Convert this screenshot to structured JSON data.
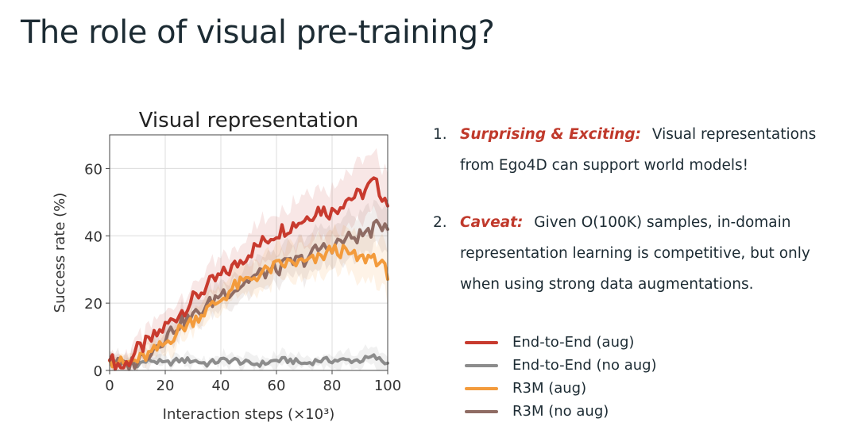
{
  "slide": {
    "title": "The role of visual pre-training?"
  },
  "points": [
    {
      "number": "1.",
      "label": "Surprising & Exciting:",
      "text": "Visual representations from Ego4D can support world models!"
    },
    {
      "number": "2.",
      "label": "Caveat:",
      "text": "Given O(100K) samples, in-domain representation learning is competitive, but only when using strong data augmentations."
    }
  ],
  "chart_data": {
    "type": "line",
    "title": "Visual representation",
    "xlabel": "Interaction steps (×10³)",
    "ylabel": "Success rate (%)",
    "xlim": [
      0,
      100
    ],
    "ylim": [
      0,
      70
    ],
    "xticks": [
      "0",
      "20",
      "40",
      "60",
      "80",
      "100"
    ],
    "yticks": [
      "0",
      "20",
      "40",
      "60"
    ],
    "grid": true,
    "legend_position": "outside-right",
    "x": [
      0,
      5,
      10,
      15,
      20,
      25,
      30,
      35,
      40,
      45,
      50,
      55,
      60,
      65,
      70,
      75,
      80,
      85,
      90,
      95,
      100
    ],
    "series": [
      {
        "name": "End-to-End (aug)",
        "color": "#c83a2e",
        "values": [
          3,
          1,
          6,
          9,
          13,
          17,
          21,
          25,
          28,
          31,
          35,
          38,
          41,
          43,
          45,
          48,
          47,
          51,
          52,
          56,
          50
        ]
      },
      {
        "name": "End-to-End (no aug)",
        "color": "#8c8c8c",
        "values": [
          3,
          2,
          2,
          3,
          2,
          3,
          3,
          2,
          3,
          3,
          2,
          2,
          3,
          3,
          2,
          3,
          3,
          3,
          3,
          4,
          2
        ]
      },
      {
        "name": "R3M (aug)",
        "color": "#f39b3c",
        "values": [
          3,
          2,
          3,
          5,
          8,
          12,
          15,
          18,
          21,
          25,
          27,
          29,
          31,
          32,
          32,
          33,
          36,
          35,
          33,
          34,
          29
        ]
      },
      {
        "name": "R3M (no aug)",
        "color": "#8f6c64",
        "values": [
          3,
          1,
          3,
          6,
          10,
          14,
          16,
          19,
          23,
          24,
          27,
          29,
          30,
          32,
          33,
          36,
          37,
          39,
          40,
          42,
          44
        ]
      }
    ]
  }
}
